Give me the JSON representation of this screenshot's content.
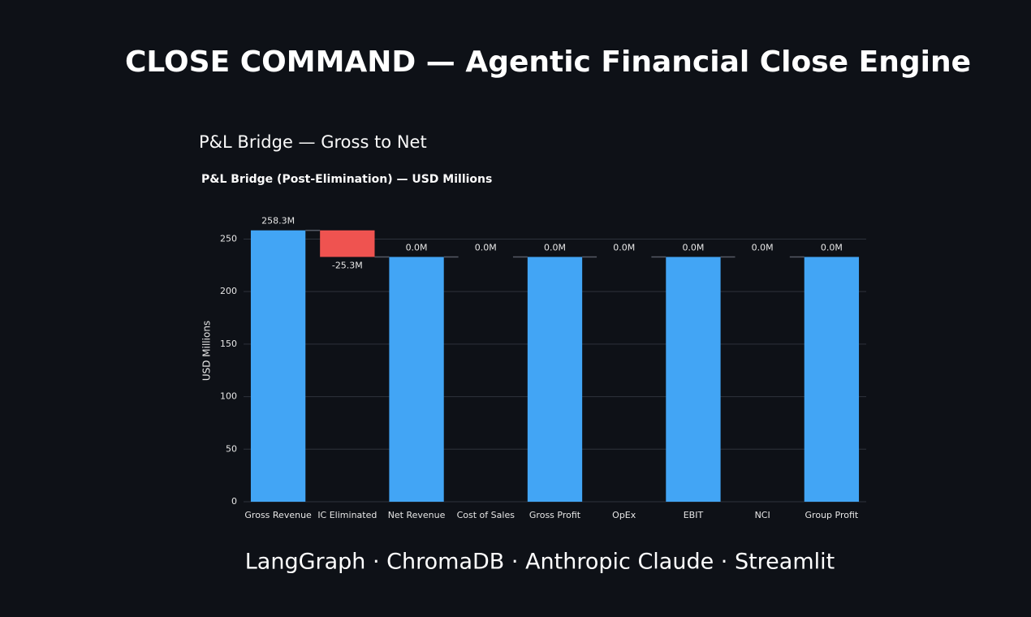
{
  "header": {
    "title": "CLOSE COMMAND — Agentic Financial Close Engine",
    "subheader": "P&L Bridge — Gross to Net"
  },
  "chart_data": {
    "type": "waterfall",
    "title": "P&L Bridge (Post-Elimination) — USD Millions",
    "y_label": "USD Millions",
    "categories": [
      "Gross Revenue",
      "IC Eliminated",
      "Net Revenue",
      "Cost of Sales",
      "Gross Profit",
      "OpEx",
      "EBIT",
      "NCI",
      "Group Profit"
    ],
    "values": [
      258.3,
      -25.3,
      0,
      0,
      0,
      0,
      0,
      0,
      0
    ],
    "value_labels": [
      "258.3M",
      "-25.3M",
      "0.0M",
      "0.0M",
      "0.0M",
      "0.0M",
      "0.0M",
      "0.0M",
      "0.0M"
    ],
    "measures": [
      "absolute",
      "relative",
      "total",
      "relative",
      "total",
      "relative",
      "total",
      "relative",
      "total"
    ],
    "increasing_color": "#42a5f5",
    "decreasing_color": "#ef5350",
    "total_color": "#42a5f5",
    "ylim": [
      0,
      272
    ],
    "yticks": [
      0,
      50,
      100,
      150,
      200,
      250
    ],
    "grid": true
  },
  "footer": {
    "text": "LangGraph · ChromaDB · Anthropic Claude · Streamlit"
  }
}
